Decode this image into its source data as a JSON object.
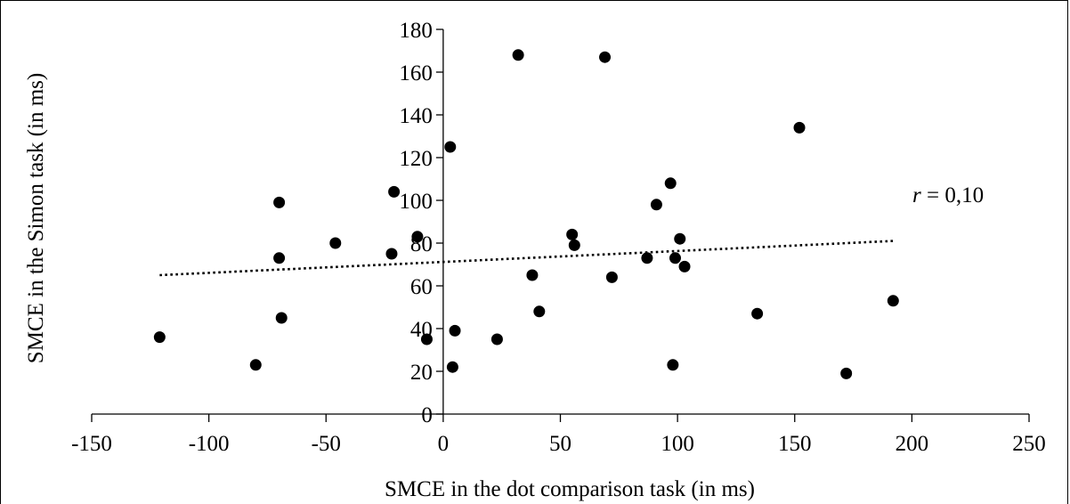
{
  "chart_data": {
    "type": "scatter",
    "title": "",
    "xlabel": "SMCE in the dot comparison task (in ms)",
    "ylabel": "SMCE in the Simon task (in ms)",
    "xlim": [
      -150,
      250
    ],
    "ylim": [
      0,
      180
    ],
    "x_ticks": [
      -150,
      -100,
      -50,
      0,
      50,
      100,
      150,
      200,
      250
    ],
    "y_ticks": [
      0,
      20,
      40,
      60,
      80,
      100,
      120,
      140,
      160,
      180
    ],
    "x_tick_labels": [
      "-150",
      "-100",
      "-50",
      "0",
      "50",
      "100",
      "150",
      "200",
      "250"
    ],
    "y_tick_labels": [
      "0",
      "20",
      "40",
      "60",
      "80",
      "100",
      "120",
      "140",
      "160",
      "180"
    ],
    "grid": false,
    "legend": "none",
    "marker_color": "#000000",
    "series": [
      {
        "points": [
          {
            "x": 32,
            "y": 168
          },
          {
            "x": 69,
            "y": 167
          },
          {
            "x": 152,
            "y": 134
          },
          {
            "x": 3,
            "y": 125
          },
          {
            "x": 97,
            "y": 108
          },
          {
            "x": -21,
            "y": 104
          },
          {
            "x": -70,
            "y": 99
          },
          {
            "x": 91,
            "y": 98
          },
          {
            "x": 55,
            "y": 84
          },
          {
            "x": -11,
            "y": 83
          },
          {
            "x": 101,
            "y": 82
          },
          {
            "x": -46,
            "y": 80
          },
          {
            "x": 56,
            "y": 79
          },
          {
            "x": -22,
            "y": 75
          },
          {
            "x": -70,
            "y": 73
          },
          {
            "x": 87,
            "y": 73
          },
          {
            "x": 99,
            "y": 73
          },
          {
            "x": 103,
            "y": 69
          },
          {
            "x": 38,
            "y": 65
          },
          {
            "x": 72,
            "y": 64
          },
          {
            "x": 192,
            "y": 53
          },
          {
            "x": 41,
            "y": 48
          },
          {
            "x": 134,
            "y": 47
          },
          {
            "x": -69,
            "y": 45
          },
          {
            "x": 5,
            "y": 39
          },
          {
            "x": -121,
            "y": 36
          },
          {
            "x": 23,
            "y": 35
          },
          {
            "x": -7,
            "y": 35
          },
          {
            "x": -80,
            "y": 23
          },
          {
            "x": 4,
            "y": 22
          },
          {
            "x": 98,
            "y": 23
          },
          {
            "x": 172,
            "y": 19
          }
        ]
      }
    ],
    "trendline": {
      "style": "dotted",
      "start": {
        "x": -121,
        "y": 65
      },
      "end": {
        "x": 192,
        "y": 81
      }
    },
    "annotation": {
      "variable": "r",
      "text": " = 0,10"
    }
  }
}
